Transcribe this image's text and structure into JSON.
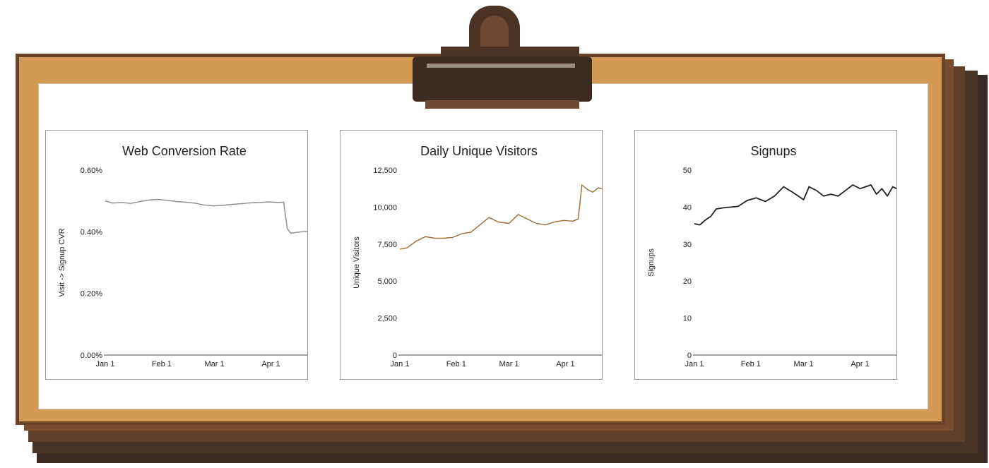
{
  "colors": {
    "board": "#d39a56",
    "frame": "#6b4128",
    "clip": "#3d2a20",
    "line_conversion": "#8a8a8a",
    "line_visitors": "#9b6a38",
    "line_signups": "#222222"
  },
  "chart_data": [
    {
      "type": "line",
      "title": "Web Conversion Rate",
      "xlabel": "",
      "ylabel": "Visit -> Signup CVR",
      "xlim": [
        "Jan 1",
        "Apr 21"
      ],
      "ylim": [
        0,
        0.6
      ],
      "y_ticks": [
        0,
        0.2,
        0.4,
        0.6
      ],
      "y_tick_labels": [
        "0.00%",
        "0.20%",
        "0.40%",
        "0.60%"
      ],
      "x_ticks": [
        "Jan 1",
        "Feb 1",
        "Mar 1",
        "Apr 1"
      ],
      "series": [
        {
          "x": [
            "Jan 1",
            "Jan 5",
            "Jan 10",
            "Jan 15",
            "Jan 20",
            "Jan 25",
            "Jan 30",
            "Feb 4",
            "Feb 9",
            "Feb 14",
            "Feb 19",
            "Feb 24",
            "Mar 1",
            "Mar 6",
            "Mar 11",
            "Mar 16",
            "Mar 21",
            "Mar 26",
            "Mar 31",
            "Apr 5",
            "Apr 8",
            "Apr 10",
            "Apr 12",
            "Apr 15",
            "Apr 18",
            "Apr 21"
          ],
          "y": [
            0.5,
            0.493,
            0.495,
            0.492,
            0.498,
            0.503,
            0.505,
            0.502,
            0.498,
            0.496,
            0.493,
            0.487,
            0.484,
            0.486,
            0.489,
            0.491,
            0.494,
            0.495,
            0.497,
            0.495,
            0.496,
            0.41,
            0.395,
            0.398,
            0.4,
            0.401
          ]
        }
      ]
    },
    {
      "type": "line",
      "title": "Daily Unique Visitors",
      "xlabel": "",
      "ylabel": "Unique Visitors",
      "xlim": [
        "Jan 1",
        "Apr 21"
      ],
      "ylim": [
        0,
        12500
      ],
      "y_ticks": [
        0,
        2500,
        5000,
        7500,
        10000,
        12500
      ],
      "y_tick_labels": [
        "0",
        "2,500",
        "5,000",
        "7,500",
        "10,000",
        "12,500"
      ],
      "x_ticks": [
        "Jan 1",
        "Feb 1",
        "Mar 1",
        "Apr 1"
      ],
      "series": [
        {
          "x": [
            "Jan 1",
            "Jan 5",
            "Jan 10",
            "Jan 15",
            "Jan 20",
            "Jan 25",
            "Jan 30",
            "Feb 4",
            "Feb 9",
            "Feb 14",
            "Feb 19",
            "Feb 24",
            "Mar 1",
            "Mar 6",
            "Mar 11",
            "Mar 16",
            "Mar 21",
            "Mar 26",
            "Mar 31",
            "Apr 5",
            "Apr 8",
            "Apr 10",
            "Apr 13",
            "Apr 16",
            "Apr 19",
            "Apr 21"
          ],
          "y": [
            7150,
            7250,
            7700,
            8000,
            7900,
            7900,
            7950,
            8200,
            8300,
            8800,
            9300,
            9000,
            8900,
            9500,
            9200,
            8900,
            8800,
            9000,
            9100,
            9050,
            9200,
            11500,
            11200,
            11000,
            11300,
            11250
          ]
        }
      ]
    },
    {
      "type": "line",
      "title": "Signups",
      "xlabel": "",
      "ylabel": "Signups",
      "xlim": [
        "Jan 1",
        "Apr 21"
      ],
      "ylim": [
        0,
        50
      ],
      "y_ticks": [
        0,
        10,
        20,
        30,
        40,
        50
      ],
      "y_tick_labels": [
        "0",
        "10",
        "20",
        "30",
        "40",
        "50"
      ],
      "x_ticks": [
        "Jan 1",
        "Feb 1",
        "Mar 1",
        "Apr 1"
      ],
      "series": [
        {
          "x": [
            "Jan 1",
            "Jan 4",
            "Jan 7",
            "Jan 10",
            "Jan 13",
            "Jan 17",
            "Jan 21",
            "Jan 25",
            "Jan 30",
            "Feb 4",
            "Feb 9",
            "Feb 14",
            "Feb 19",
            "Feb 24",
            "Mar 1",
            "Mar 4",
            "Mar 8",
            "Mar 12",
            "Mar 16",
            "Mar 20",
            "Mar 24",
            "Mar 28",
            "Apr 1",
            "Apr 4",
            "Apr 7",
            "Apr 10",
            "Apr 13",
            "Apr 16",
            "Apr 19",
            "Apr 21"
          ],
          "y": [
            35.5,
            35.2,
            36.5,
            37.5,
            39.5,
            39.8,
            40.0,
            40.2,
            41.8,
            42.5,
            41.5,
            43.0,
            45.5,
            44.0,
            42.0,
            45.5,
            44.5,
            43.0,
            43.5,
            43.0,
            44.5,
            46.0,
            45.0,
            45.5,
            46.0,
            43.5,
            45.0,
            43.0,
            45.5,
            45.0
          ]
        }
      ]
    }
  ]
}
